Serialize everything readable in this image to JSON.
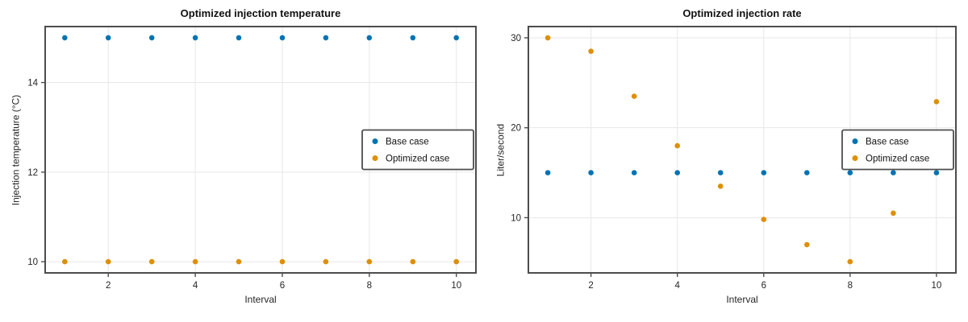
{
  "figure": {
    "background": "#ffffff"
  },
  "colors": {
    "base_case": "#0173b2",
    "optimized_case": "#de8f05",
    "spine": "#4d4d4d",
    "grid": "#e7e7e7",
    "tick": "#4d4d4d",
    "text": "#111111",
    "tick_text": "#262626",
    "legend_bg": "#ffffff",
    "legend_border": "#4d4d4d"
  },
  "legend": {
    "items": [
      {
        "label": "Base case",
        "color": "#0173b2"
      },
      {
        "label": "Optimized case",
        "color": "#de8f05"
      }
    ],
    "position": "center right"
  },
  "chart_data": [
    {
      "type": "scatter",
      "title": "Optimized injection temperature",
      "xlabel": "Interval",
      "ylabel": "Injection temperature (°C)",
      "x": [
        1,
        2,
        3,
        4,
        5,
        6,
        7,
        8,
        9,
        10
      ],
      "series": [
        {
          "name": "Base case",
          "color": "#0173b2",
          "values": [
            15,
            15,
            15,
            15,
            15,
            15,
            15,
            15,
            15,
            15
          ]
        },
        {
          "name": "Optimized case",
          "color": "#de8f05",
          "values": [
            10,
            10,
            10,
            10,
            10,
            10,
            10,
            10,
            10,
            10
          ]
        }
      ],
      "xticks": [
        2,
        4,
        6,
        8,
        10
      ],
      "yticks": [
        10,
        12,
        14
      ],
      "xlim": [
        0.55,
        10.45
      ],
      "ylim": [
        9.75,
        15.25
      ],
      "grid": true,
      "legend_position": "center right"
    },
    {
      "type": "scatter",
      "title": "Optimized injection rate",
      "xlabel": "Interval",
      "ylabel": "Liter/second",
      "x": [
        1,
        2,
        3,
        4,
        5,
        6,
        7,
        8,
        9,
        10
      ],
      "series": [
        {
          "name": "Base case",
          "color": "#0173b2",
          "values": [
            15,
            15,
            15,
            15,
            15,
            15,
            15,
            15,
            15,
            15
          ]
        },
        {
          "name": "Optimized case",
          "color": "#de8f05",
          "values": [
            30,
            28.5,
            23.5,
            18,
            13.5,
            9.8,
            7,
            5.1,
            10.5,
            22.9
          ]
        }
      ],
      "xticks": [
        2,
        4,
        6,
        8,
        10
      ],
      "yticks": [
        10,
        20,
        30
      ],
      "xlim": [
        0.55,
        10.45
      ],
      "ylim": [
        3.86,
        31.25
      ],
      "grid": true,
      "legend_position": "center right"
    }
  ]
}
